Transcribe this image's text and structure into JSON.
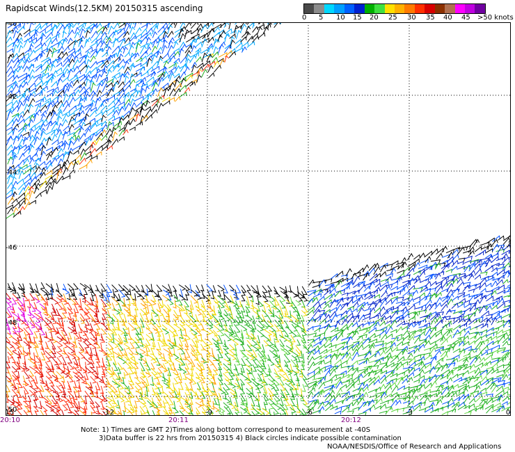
{
  "title": "Rapidscat Winds(12.5KM) 20150315 ascending",
  "colorbar": {
    "colors": [
      "#4a4a4a",
      "#8c8c8c",
      "#00d8ff",
      "#00a0ff",
      "#0060ff",
      "#0020d0",
      "#00b000",
      "#40e040",
      "#ffe000",
      "#ffb000",
      "#ff7a00",
      "#ff3000",
      "#d80000",
      "#8b3000",
      "#b07050",
      "#ff00ff",
      "#c000e0",
      "#7000a0"
    ],
    "labels": [
      "0",
      "5",
      "10",
      "15",
      "20",
      "25",
      "30",
      "35",
      "40",
      "45",
      ">50 knots"
    ]
  },
  "map": {
    "lat_labels": [
      "-40",
      "-42",
      "-44",
      "-46",
      "-48",
      "-50"
    ],
    "lon_labels": [
      "-15",
      "-12",
      "-9",
      "-6",
      "-3",
      "0"
    ],
    "time_labels": [
      "20:10",
      "20:11",
      "20:12"
    ],
    "time_color": "#800080"
  },
  "notes": {
    "line1": "Note: 1) Times are GMT 2)Times along bottom correspond to measurement at -40S",
    "line2": "3)Data buffer is 22 hrs from 20150315 4) Black circles indicate possible contamination",
    "line3": "NOAA/NESDIS/Office of Research and Applications"
  }
}
